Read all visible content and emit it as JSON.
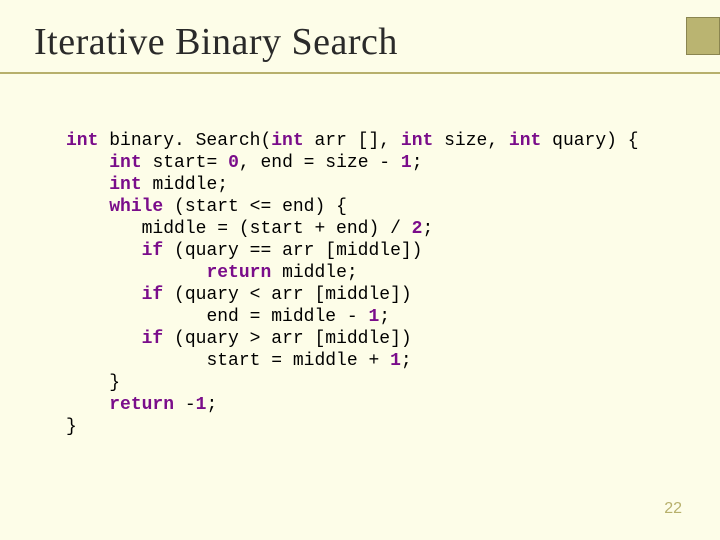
{
  "slide": {
    "title": "Iterative Binary Search",
    "page_number": "22",
    "background_color": "#fdfde8",
    "accent_color": "#bab471",
    "accent_border_color": "#8a8550",
    "rule_color": "#b7b06c",
    "title_color": "#2a2a2a",
    "title_fontsize_pt": 29,
    "code_fontsize_pt": 14,
    "keyword_color": "#7a0d8a"
  },
  "code": {
    "language": "c_like",
    "tokens": [
      {
        "line": 0,
        "col": 0,
        "style": "kw",
        "t": "int"
      },
      {
        "line": 0,
        "col": 4,
        "style": "",
        "t": "binary. Search("
      },
      {
        "line": 0,
        "col": 19,
        "style": "kw",
        "t": "int"
      },
      {
        "line": 0,
        "col": 23,
        "style": "",
        "t": "arr [], "
      },
      {
        "line": 0,
        "col": 31,
        "style": "kw",
        "t": "int"
      },
      {
        "line": 0,
        "col": 35,
        "style": "",
        "t": "size, "
      },
      {
        "line": 0,
        "col": 41,
        "style": "kw",
        "t": "int"
      },
      {
        "line": 0,
        "col": 45,
        "style": "",
        "t": "quary) {"
      },
      {
        "line": 1,
        "col": 4,
        "style": "kw",
        "t": "int"
      },
      {
        "line": 1,
        "col": 8,
        "style": "",
        "t": "start= "
      },
      {
        "line": 1,
        "col": 15,
        "style": "num",
        "t": "0"
      },
      {
        "line": 1,
        "col": 16,
        "style": "",
        "t": ", end = size - "
      },
      {
        "line": 1,
        "col": 31,
        "style": "num",
        "t": "1"
      },
      {
        "line": 1,
        "col": 32,
        "style": "",
        "t": ";"
      },
      {
        "line": 2,
        "col": 4,
        "style": "kw",
        "t": "int"
      },
      {
        "line": 2,
        "col": 8,
        "style": "",
        "t": "middle;"
      },
      {
        "line": 3,
        "col": 4,
        "style": "kw",
        "t": "while"
      },
      {
        "line": 3,
        "col": 10,
        "style": "",
        "t": "(start <= end) {"
      },
      {
        "line": 4,
        "col": 7,
        "style": "",
        "t": "middle = (start + end) / "
      },
      {
        "line": 4,
        "col": 32,
        "style": "num",
        "t": "2"
      },
      {
        "line": 4,
        "col": 33,
        "style": "",
        "t": ";"
      },
      {
        "line": 5,
        "col": 7,
        "style": "kw",
        "t": "if"
      },
      {
        "line": 5,
        "col": 10,
        "style": "",
        "t": "(quary == arr [middle])"
      },
      {
        "line": 6,
        "col": 13,
        "style": "kw",
        "t": "return"
      },
      {
        "line": 6,
        "col": 20,
        "style": "",
        "t": "middle;"
      },
      {
        "line": 7,
        "col": 7,
        "style": "kw",
        "t": "if"
      },
      {
        "line": 7,
        "col": 10,
        "style": "",
        "t": "(quary < arr [middle])"
      },
      {
        "line": 8,
        "col": 13,
        "style": "",
        "t": "end = middle - "
      },
      {
        "line": 8,
        "col": 28,
        "style": "num",
        "t": "1"
      },
      {
        "line": 8,
        "col": 29,
        "style": "",
        "t": ";"
      },
      {
        "line": 9,
        "col": 7,
        "style": "kw",
        "t": "if"
      },
      {
        "line": 9,
        "col": 10,
        "style": "",
        "t": "(quary > arr [middle])"
      },
      {
        "line": 10,
        "col": 13,
        "style": "",
        "t": "start = middle + "
      },
      {
        "line": 10,
        "col": 30,
        "style": "num",
        "t": "1"
      },
      {
        "line": 10,
        "col": 31,
        "style": "",
        "t": ";"
      },
      {
        "line": 11,
        "col": 4,
        "style": "",
        "t": "}"
      },
      {
        "line": 12,
        "col": 4,
        "style": "kw",
        "t": "return"
      },
      {
        "line": 12,
        "col": 11,
        "style": "",
        "t": "-"
      },
      {
        "line": 12,
        "col": 12,
        "style": "num",
        "t": "1"
      },
      {
        "line": 12,
        "col": 13,
        "style": "",
        "t": ";"
      },
      {
        "line": 13,
        "col": 0,
        "style": "",
        "t": "}"
      }
    ],
    "line_count": 14
  }
}
